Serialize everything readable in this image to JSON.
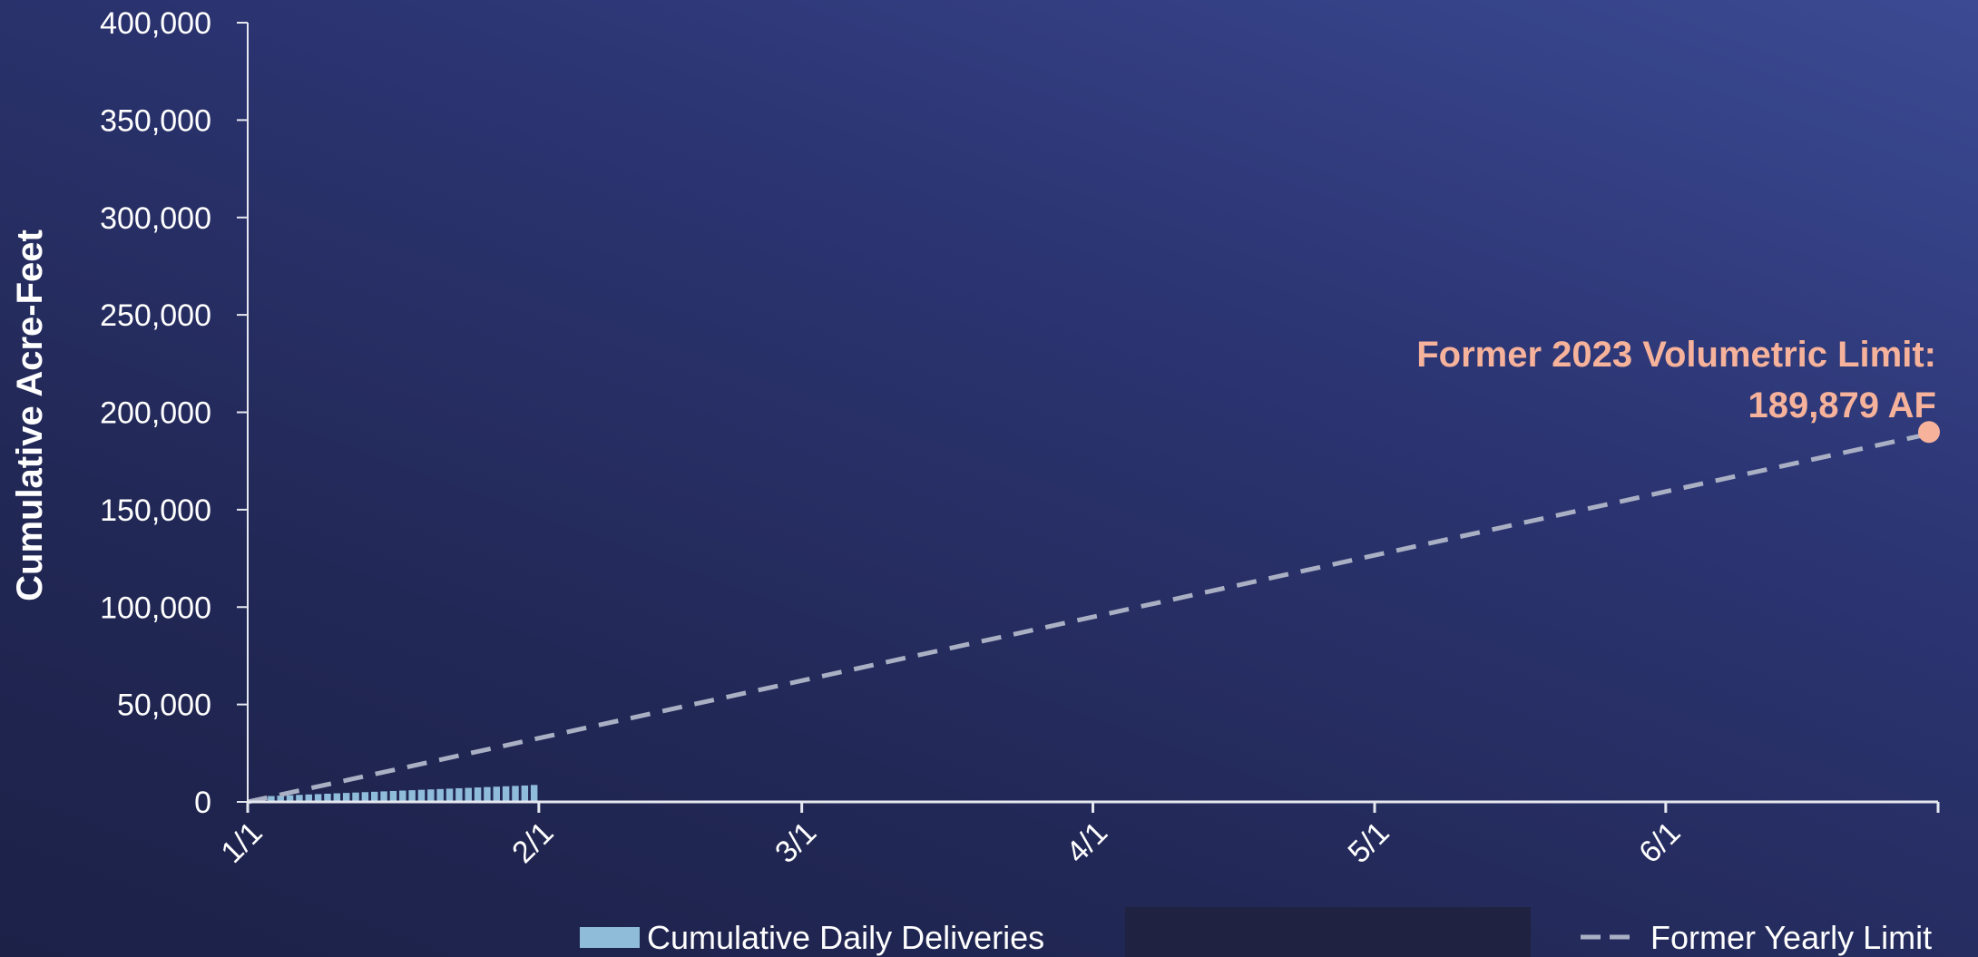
{
  "chart_data": {
    "type": "bar",
    "ylabel": "Cumulative Acre-Feet",
    "ylim": [
      0,
      400000
    ],
    "y_ticks": [
      0,
      50000,
      100000,
      150000,
      200000,
      250000,
      300000,
      350000,
      400000
    ],
    "y_tick_labels": [
      "0",
      "50,000",
      "100,000",
      "150,000",
      "200,000",
      "250,000",
      "300,000",
      "350,000",
      "400,000"
    ],
    "x_range": [
      "2023-01-01",
      "2023-06-30"
    ],
    "x_ticks": [
      "2023-01-01",
      "2023-02-01",
      "2023-03-01",
      "2023-04-01",
      "2023-05-01",
      "2023-06-01"
    ],
    "x_tick_labels": [
      "1/1",
      "2/1",
      "3/1",
      "4/1",
      "5/1",
      "6/1"
    ],
    "grid": false,
    "legend_position": "bottom",
    "series": [
      {
        "name": "Cumulative Daily Deliveries",
        "kind": "bar",
        "color": "#8fbcd9",
        "x": [
          "2023-01-01",
          "2023-01-02",
          "2023-01-03",
          "2023-01-04",
          "2023-01-05",
          "2023-01-06",
          "2023-01-07",
          "2023-01-08",
          "2023-01-09",
          "2023-01-10",
          "2023-01-11",
          "2023-01-12",
          "2023-01-13",
          "2023-01-14",
          "2023-01-15",
          "2023-01-16",
          "2023-01-17",
          "2023-01-18",
          "2023-01-19",
          "2023-01-20",
          "2023-01-21",
          "2023-01-22",
          "2023-01-23",
          "2023-01-24",
          "2023-01-25",
          "2023-01-26",
          "2023-01-27",
          "2023-01-28",
          "2023-01-29",
          "2023-01-30",
          "2023-01-31"
        ],
        "values": [
          1100,
          2300,
          3000,
          3200,
          3400,
          3600,
          3800,
          4000,
          4200,
          4400,
          4600,
          4800,
          5000,
          5200,
          5400,
          5600,
          5800,
          6000,
          6200,
          6400,
          6600,
          6800,
          7000,
          7200,
          7400,
          7600,
          7800,
          8000,
          8200,
          8400,
          8700
        ]
      },
      {
        "name": "Former Yearly Limit",
        "kind": "line",
        "style": "dashed",
        "color": "#aab0c4",
        "x": [
          "2023-01-01",
          "2023-06-30"
        ],
        "values": [
          0,
          189879
        ]
      }
    ],
    "annotations": [
      {
        "lines": [
          "Former 2023 Volumetric Limit:",
          "189,879 AF"
        ],
        "x": "2023-06-30",
        "y": 189879,
        "marker_color": "#f6b29a"
      }
    ]
  }
}
